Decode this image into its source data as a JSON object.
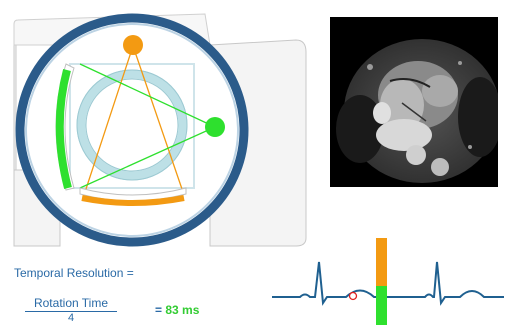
{
  "formula": {
    "label": "Temporal Resolution  =",
    "numerator": "Rotation Time",
    "denominator": "4",
    "equals": "=",
    "value": "83 ms"
  },
  "colors": {
    "gantry_ring": "#2b5b8a",
    "bore_ring": "#bde0e6",
    "source": "#f39a12",
    "detector_green": "#2ee02e",
    "ecg_trace": "#1f6090",
    "window_orange": "#f39a12",
    "window_green": "#2ee02e"
  },
  "icons": {
    "tube_a": "orange-circle",
    "tube_b": "green-circle",
    "ecg_marker": "red-ring"
  }
}
